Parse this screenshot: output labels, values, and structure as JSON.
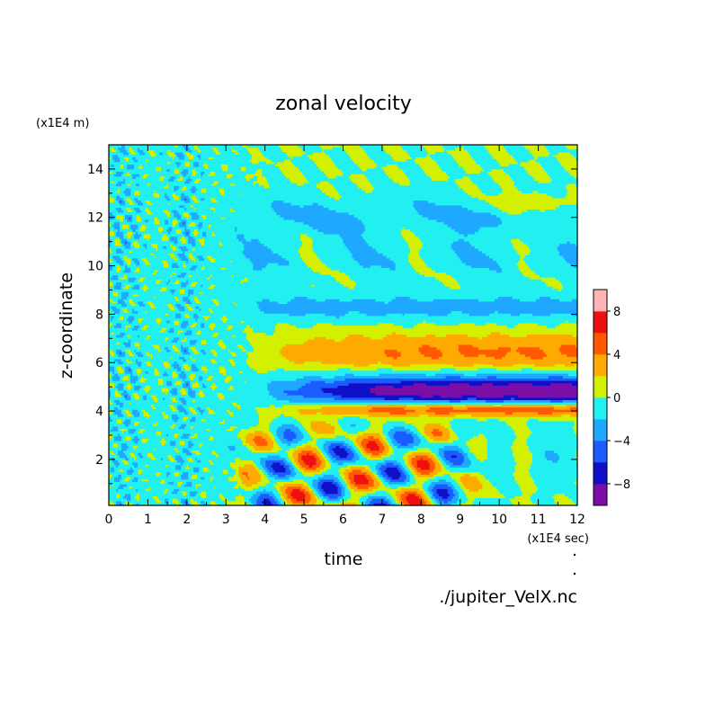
{
  "chart_data": {
    "type": "heatmap",
    "title": "zonal velocity",
    "xlabel": "time",
    "ylabel": "z-coordinate",
    "x_unit_label": "(x1E4 sec)",
    "y_unit_label": "(x1E4 m)",
    "source_label": "./jupiter_VelX.nc",
    "xlim": [
      0,
      12
    ],
    "ylim": [
      0.1,
      15
    ],
    "x_ticks": [
      0,
      1,
      2,
      3,
      4,
      5,
      6,
      7,
      8,
      9,
      10,
      11,
      12
    ],
    "y_ticks": [
      2,
      4,
      6,
      8,
      10,
      12,
      14
    ],
    "colorbar": {
      "levels": [
        -10,
        -8,
        -6,
        -4,
        -2,
        0,
        2,
        4,
        6,
        8,
        10
      ],
      "tick_labels": [
        -8,
        -4,
        0,
        4,
        8
      ],
      "colors": [
        "#7a0ea6",
        "#1010c8",
        "#1a5cff",
        "#1ea8ff",
        "#22f0f0",
        "#d2f000",
        "#ffaa00",
        "#ff5a00",
        "#ee1010",
        "#ffb4b4"
      ]
    },
    "note": "Filled contour of zonal velocity vs time and height. Small-scale noisy 0 / -2 field for time < 3; after time 3: alternating bands near z=12 (-2), z=8.3 (-2), z=6.5 (+4), z=4.8 (-6 to -10), z=4.1 (+4 to +6), and oscillating -8 to +8 cells below z=3.5."
  }
}
